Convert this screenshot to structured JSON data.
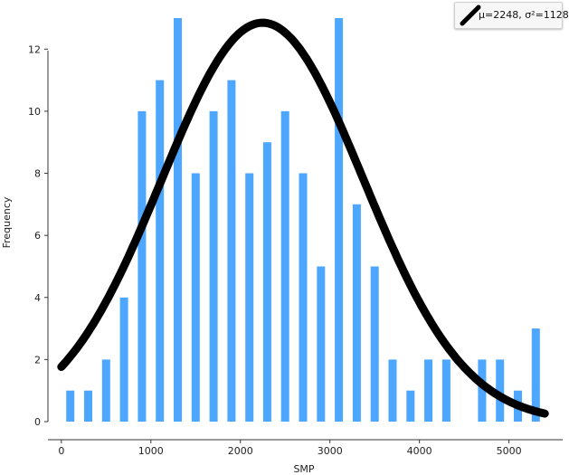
{
  "chart_data": {
    "type": "bar",
    "xlabel": "SMP",
    "ylabel": "Frequency",
    "xlim": [
      -150,
      5600
    ],
    "ylim": [
      0,
      13
    ],
    "x_ticks": [
      0,
      1000,
      2000,
      3000,
      4000,
      5000
    ],
    "y_ticks": [
      0,
      2,
      4,
      6,
      8,
      10,
      12
    ],
    "bin_width": 200,
    "bars": [
      {
        "x": 100,
        "value": 1
      },
      {
        "x": 300,
        "value": 1
      },
      {
        "x": 500,
        "value": 2
      },
      {
        "x": 700,
        "value": 4
      },
      {
        "x": 900,
        "value": 10
      },
      {
        "x": 1100,
        "value": 11
      },
      {
        "x": 1300,
        "value": 13
      },
      {
        "x": 1500,
        "value": 8
      },
      {
        "x": 1700,
        "value": 10
      },
      {
        "x": 1900,
        "value": 11
      },
      {
        "x": 2100,
        "value": 8
      },
      {
        "x": 2300,
        "value": 9
      },
      {
        "x": 2500,
        "value": 10
      },
      {
        "x": 2700,
        "value": 8
      },
      {
        "x": 2900,
        "value": 5
      },
      {
        "x": 3100,
        "value": 13
      },
      {
        "x": 3300,
        "value": 7
      },
      {
        "x": 3500,
        "value": 5
      },
      {
        "x": 3700,
        "value": 2
      },
      {
        "x": 3900,
        "value": 1
      },
      {
        "x": 4100,
        "value": 2
      },
      {
        "x": 4300,
        "value": 2
      },
      {
        "x": 4500,
        "value": 0
      },
      {
        "x": 4700,
        "value": 2
      },
      {
        "x": 4900,
        "value": 2
      },
      {
        "x": 5100,
        "value": 1
      },
      {
        "x": 5300,
        "value": 3
      }
    ],
    "fit_curve": {
      "name": "μ=2248, σ²=1128",
      "mean": 2248,
      "sd": 1128,
      "peak": 12.85,
      "x_range": [
        0,
        5400
      ]
    },
    "bar_color": "#4da6ff",
    "curve_color": "#000000",
    "legend_position": "top-right",
    "grid": false
  }
}
